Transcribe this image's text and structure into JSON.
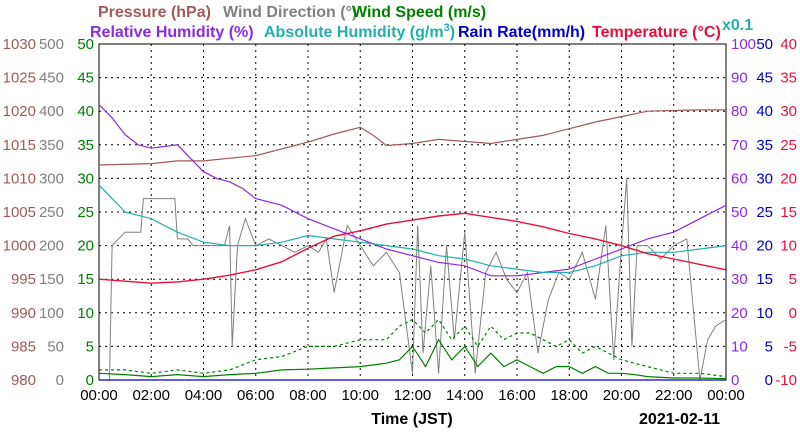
{
  "legend": {
    "pressure": "Pressure (hPa)",
    "wind_direction_main": "Wind Direction (",
    "wind_direction_end": "°)",
    "wind_speed": "Wind Speed (m/s)",
    "relative_humidity": "Relative Humidity (%)",
    "absolute_humidity_main": "Absolute Humidity (g/m",
    "absolute_humidity_sup": "3",
    "absolute_humidity_end": ")",
    "rain_rate": "Rain Rate(mm/h)",
    "temperature": "Temperature (°C)",
    "rain_scale_note": "x0.1"
  },
  "xlabel": "Time (JST)",
  "date": "2021-02-11",
  "colors": {
    "pressure": "#a05a5a",
    "wind_direction": "#808080",
    "wind_speed": "#008000",
    "relative_humidity": "#8a2be2",
    "absolute_humidity": "#20b2aa",
    "rain_rate": "#0000cd",
    "temperature": "#e8103a"
  },
  "chart_data": {
    "type": "line",
    "x_ticks": [
      "00:00",
      "02:00",
      "04:00",
      "06:00",
      "08:00",
      "10:00",
      "12:00",
      "14:00",
      "16:00",
      "18:00",
      "20:00",
      "22:00",
      "00:00"
    ],
    "x_range_hours": [
      0,
      24
    ],
    "grid": true,
    "axes": {
      "pressure": {
        "side": "left",
        "ticks": [
          980,
          985,
          990,
          995,
          1000,
          1005,
          1010,
          1015,
          1020,
          1025,
          1030
        ]
      },
      "wind_direction": {
        "side": "left",
        "ticks": [
          0,
          50,
          100,
          150,
          200,
          250,
          300,
          350,
          400,
          450,
          500
        ]
      },
      "wind_speed": {
        "side": "left",
        "ticks": [
          0,
          5,
          10,
          15,
          20,
          25,
          30,
          35,
          40,
          45,
          50
        ]
      },
      "relative_humidity": {
        "side": "right",
        "ticks": [
          0,
          10,
          20,
          30,
          40,
          50,
          60,
          70,
          80,
          90,
          100
        ]
      },
      "rain_rate": {
        "side": "right",
        "ticks": [
          0,
          5,
          10,
          15,
          20,
          25,
          30,
          35,
          40,
          45,
          50
        ]
      },
      "temperature": {
        "side": "right",
        "ticks": [
          -10,
          -5,
          0,
          5,
          10,
          15,
          20,
          25,
          30,
          35,
          40
        ]
      }
    },
    "series": [
      {
        "name": "Pressure (hPa)",
        "axis": "pressure",
        "x": [
          0,
          2,
          3,
          4,
          6,
          8,
          9,
          10,
          10.5,
          11,
          12,
          13,
          15,
          16,
          17,
          18,
          19,
          20,
          21,
          22,
          23,
          24
        ],
        "y": [
          1012,
          1012.2,
          1012.6,
          1012.6,
          1013.4,
          1015.4,
          1016.6,
          1017.6,
          1016.4,
          1014.9,
          1015.2,
          1015.8,
          1015.2,
          1015.8,
          1016.4,
          1017.4,
          1018.4,
          1019.2,
          1020.0,
          1020.1,
          1020.2,
          1020.2
        ]
      },
      {
        "name": "Wind Direction (°)",
        "axis": "wind_direction",
        "x": [
          0,
          0.4,
          0.5,
          1,
          1.6,
          1.7,
          2,
          2.9,
          3.0,
          3.4,
          3.6,
          4,
          4.4,
          4.8,
          5.0,
          5.1,
          5.3,
          5.6,
          6,
          6.5,
          7,
          7.5,
          8,
          8.4,
          8.7,
          9,
          9.5,
          10,
          10.5,
          11,
          11.5,
          12,
          12.2,
          12.4,
          12.7,
          13,
          13.3,
          13.6,
          14,
          14.4,
          14.8,
          15.2,
          15.6,
          16,
          16.4,
          16.8,
          17.2,
          17.6,
          18,
          18.5,
          19,
          19.4,
          19.7,
          20,
          20.2,
          20.4,
          20.6,
          21,
          21.5,
          22,
          22.5,
          23,
          23.3,
          23.6,
          24
        ],
        "y": [
          0,
          0,
          200,
          220,
          220,
          270,
          270,
          270,
          210,
          210,
          200,
          200,
          200,
          200,
          230,
          50,
          200,
          240,
          200,
          210,
          200,
          190,
          200,
          190,
          210,
          130,
          230,
          200,
          170,
          190,
          160,
          10,
          230,
          40,
          170,
          10,
          200,
          60,
          220,
          10,
          160,
          190,
          150,
          130,
          160,
          40,
          120,
          160,
          150,
          190,
          120,
          230,
          30,
          200,
          300,
          50,
          200,
          200,
          180,
          200,
          210,
          0,
          60,
          80,
          90
        ]
      },
      {
        "name": "Wind Speed (m/s)",
        "axis": "wind_speed",
        "x": [
          0,
          1,
          2,
          3,
          4,
          5,
          6,
          7,
          8,
          9,
          10,
          11,
          11.5,
          12,
          12.5,
          13,
          13.5,
          14,
          14.5,
          15,
          15.5,
          16,
          16.5,
          17,
          17.5,
          18,
          18.5,
          19,
          19.5,
          20,
          20.5,
          21,
          22,
          23,
          24
        ],
        "y": [
          1,
          0.8,
          0.5,
          0.8,
          0.5,
          0.8,
          1,
          1.5,
          1.6,
          1.8,
          2,
          2.5,
          3,
          5,
          2,
          6,
          3,
          5,
          2,
          4,
          2,
          3,
          2,
          1,
          2,
          2,
          1,
          2,
          1,
          1,
          0.8,
          0.5,
          0.3,
          0.3,
          0.2
        ]
      },
      {
        "name": "Wind Speed max (m/s)",
        "axis": "wind_speed",
        "x": [
          0,
          1,
          2,
          3,
          4,
          5,
          6,
          7,
          8,
          9,
          10,
          11,
          11.5,
          12,
          12.5,
          13,
          13.5,
          14,
          14.5,
          15,
          15.5,
          16,
          16.5,
          17,
          17.5,
          18,
          18.5,
          19,
          19.5,
          20,
          21,
          22,
          23,
          24
        ],
        "y": [
          1.5,
          1.5,
          1,
          1.5,
          1,
          1.5,
          3,
          3.5,
          5,
          5,
          6,
          6,
          8,
          9,
          7,
          9,
          6,
          8,
          5,
          8,
          6,
          7,
          7,
          6,
          5,
          6,
          4,
          5,
          4,
          3,
          2,
          1,
          1,
          0.5
        ]
      },
      {
        "name": "Relative Humidity (%)",
        "axis": "relative_humidity",
        "x": [
          0,
          0.5,
          1,
          1.5,
          2,
          3,
          3.5,
          4,
          4.5,
          5,
          5.5,
          6,
          7,
          8,
          9,
          10,
          11,
          12,
          13,
          14,
          15,
          16,
          17,
          18,
          19,
          20,
          21,
          22,
          23,
          24
        ],
        "y": [
          82,
          78,
          73,
          70,
          69,
          70,
          66,
          62,
          60,
          59,
          57,
          54,
          52,
          48,
          45,
          42,
          39,
          37,
          35,
          34,
          31,
          31,
          32,
          33,
          36,
          39,
          42,
          44,
          48,
          52
        ]
      },
      {
        "name": "Absolute Humidity (g/m3)",
        "axis": "wind_speed",
        "x": [
          0,
          0.5,
          1,
          2,
          3,
          4,
          5,
          6,
          7,
          8,
          9,
          10,
          11,
          12,
          13,
          14,
          15,
          16,
          17,
          18,
          19,
          20,
          21,
          22,
          23,
          24
        ],
        "y": [
          29,
          27,
          25,
          24,
          22,
          20.5,
          20,
          20,
          20.5,
          21.5,
          21,
          20.5,
          20,
          19.5,
          18.5,
          18,
          17,
          16.5,
          16,
          16,
          17,
          18.5,
          19,
          19,
          19.5,
          20
        ]
      },
      {
        "name": "Rain Rate(mm/h)",
        "axis": "rain_rate",
        "x": [
          0,
          24
        ],
        "y": [
          0,
          0
        ]
      },
      {
        "name": "Temperature (°C)",
        "axis": "temperature",
        "x": [
          0,
          1,
          2,
          3,
          4,
          5,
          6,
          7,
          8,
          9,
          10,
          11,
          12,
          13,
          14,
          15,
          16,
          17,
          18,
          19,
          20,
          21,
          22,
          23,
          24
        ],
        "y": [
          5,
          4.7,
          4.4,
          4.6,
          5,
          5.6,
          6.4,
          7.6,
          9.6,
          11.4,
          12.2,
          13.2,
          13.8,
          14.4,
          14.8,
          14.2,
          13.6,
          12.8,
          11.8,
          11,
          10,
          8.8,
          8,
          7.2,
          6.4
        ]
      }
    ]
  }
}
